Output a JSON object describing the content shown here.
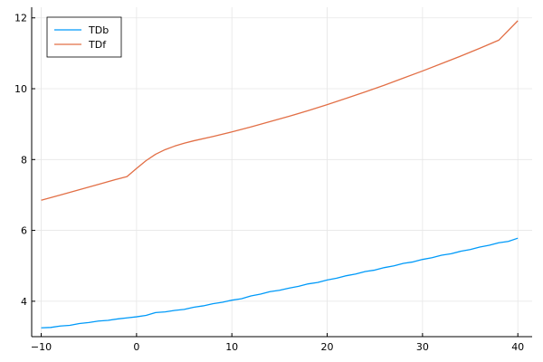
{
  "chart_data": {
    "type": "line",
    "title": "",
    "xlabel": "",
    "ylabel": "",
    "xlim": [
      -11,
      41.5
    ],
    "ylim": [
      3.0,
      12.3
    ],
    "x_ticks": [
      {
        "value": -10,
        "label": "−10"
      },
      {
        "value": 0,
        "label": "0"
      },
      {
        "value": 10,
        "label": "10"
      },
      {
        "value": 20,
        "label": "20"
      },
      {
        "value": 30,
        "label": "30"
      },
      {
        "value": 40,
        "label": "40"
      }
    ],
    "y_ticks": [
      {
        "value": 4,
        "label": "4"
      },
      {
        "value": 6,
        "label": "6"
      },
      {
        "value": 8,
        "label": "8"
      },
      {
        "value": 10,
        "label": "10"
      },
      {
        "value": 12,
        "label": "12"
      }
    ],
    "grid": true,
    "legend": "top-left",
    "series": [
      {
        "name": "TDb",
        "color": "#009af9",
        "x": [
          -10,
          -9,
          -8,
          -7,
          -6,
          -5,
          -4,
          -3,
          -2,
          -1,
          0,
          1,
          2,
          3,
          4,
          5,
          6,
          7,
          8,
          9,
          10,
          11,
          12,
          13,
          14,
          15,
          16,
          17,
          18,
          19,
          20,
          21,
          22,
          23,
          24,
          25,
          26,
          27,
          28,
          29,
          30,
          31,
          32,
          33,
          34,
          35,
          36,
          37,
          38,
          39,
          40
        ],
        "y": [
          3.25,
          3.26,
          3.3,
          3.32,
          3.37,
          3.4,
          3.44,
          3.46,
          3.5,
          3.53,
          3.56,
          3.6,
          3.68,
          3.7,
          3.74,
          3.77,
          3.83,
          3.87,
          3.93,
          3.97,
          4.03,
          4.07,
          4.15,
          4.2,
          4.27,
          4.31,
          4.37,
          4.42,
          4.49,
          4.53,
          4.6,
          4.65,
          4.72,
          4.77,
          4.84,
          4.88,
          4.95,
          5.0,
          5.07,
          5.11,
          5.18,
          5.23,
          5.3,
          5.34,
          5.41,
          5.46,
          5.53,
          5.58,
          5.65,
          5.69,
          5.78
        ]
      },
      {
        "name": "TDf",
        "color": "#e26f46",
        "x": [
          -10,
          -8,
          -6,
          -4,
          -2,
          -1,
          0,
          1,
          2,
          3,
          4,
          5,
          6,
          8,
          10,
          12,
          14,
          16,
          18,
          20,
          22,
          24,
          26,
          28,
          30,
          32,
          34,
          36,
          38,
          40
        ],
        "y": [
          6.85,
          7.0,
          7.15,
          7.3,
          7.45,
          7.52,
          7.75,
          7.97,
          8.15,
          8.28,
          8.38,
          8.46,
          8.53,
          8.65,
          8.78,
          8.92,
          9.07,
          9.22,
          9.38,
          9.55,
          9.73,
          9.91,
          10.1,
          10.3,
          10.5,
          10.71,
          10.92,
          11.14,
          11.37,
          11.92
        ]
      }
    ]
  }
}
